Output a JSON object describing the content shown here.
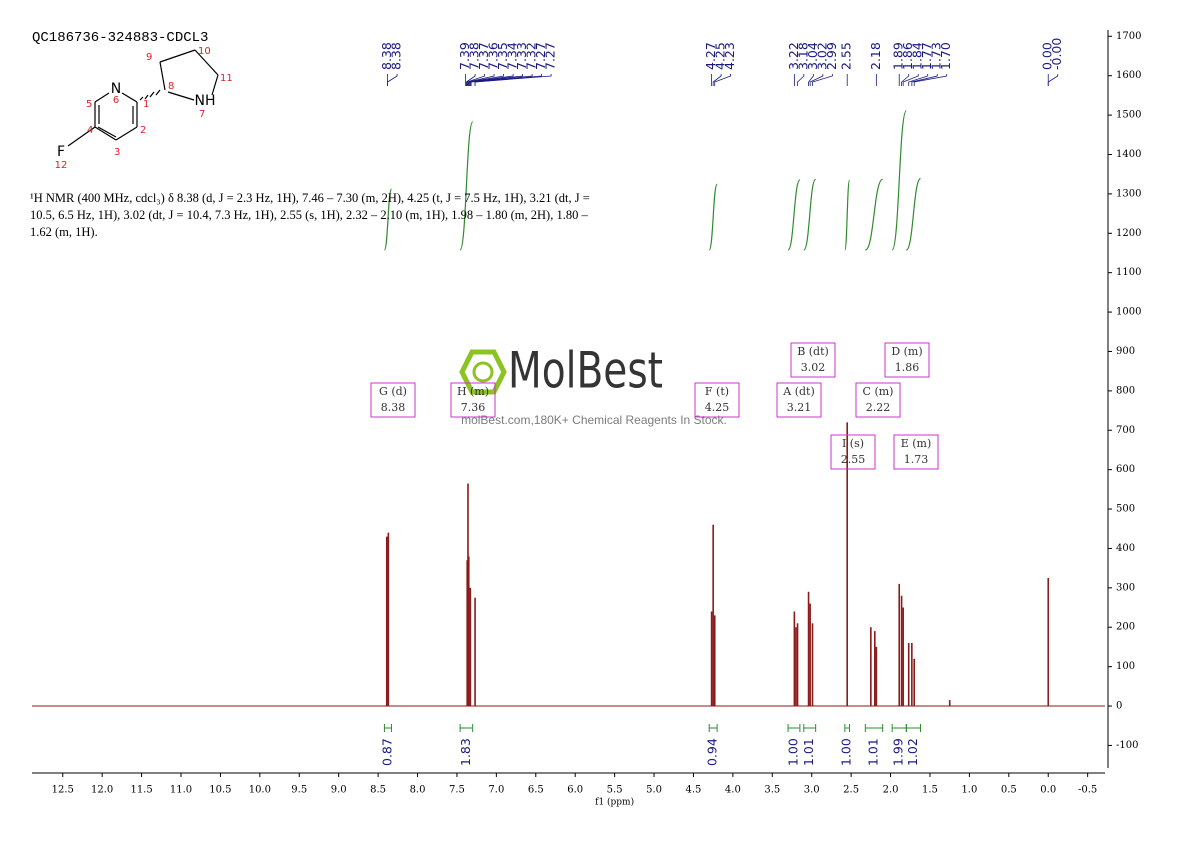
{
  "chart_data": {
    "type": "nmr",
    "title": "QC186736-324883-CDCL3",
    "description": "¹H NMR (400 MHz, cdcl₃) δ 8.38 (d, J = 2.3 Hz, 1H), 7.46 – 7.30 (m, 2H), 4.25 (t, J = 7.5 Hz, 1H), 3.21 (dt, J = 10.5, 6.5 Hz, 1H), 3.02 (dt, J = 10.4, 7.3 Hz, 1H), 2.55 (s, 1H), 2.32 – 2.10 (m, 1H), 1.98 – 1.80 (m, 2H), 1.80 – 1.62 (m, 1H).",
    "structure_labels": [
      "N",
      "6",
      "1",
      "5",
      "4",
      "2",
      "3",
      "F",
      "12",
      "8",
      "9",
      "10",
      "11",
      "NH",
      "7"
    ],
    "watermark": "MolBest",
    "watermark_caption": "molBest.com,180K+ Chemical Reagents In Stock.",
    "x_label": "f1 (ppm)",
    "color": "#8b1a1a",
    "x": [
      8.39,
      8.37,
      7.37,
      7.36,
      7.35,
      7.33,
      7.27,
      4.27,
      4.25,
      4.23,
      3.22,
      3.2,
      3.18,
      3.04,
      3.02,
      2.99,
      2.55,
      2.25,
      2.2,
      2.18,
      1.89,
      1.86,
      1.84,
      1.77,
      1.73,
      1.7,
      1.25,
      0.0
    ],
    "values": [
      430,
      440,
      370,
      565,
      380,
      300,
      275,
      240,
      460,
      230,
      240,
      200,
      210,
      290,
      260,
      210,
      720,
      200,
      190,
      150,
      310,
      280,
      250,
      160,
      160,
      120,
      15,
      325
    ],
    "peak_labels": [
      "8.38",
      "8.38",
      "7.39",
      "7.38",
      "7.37",
      "7.36",
      "7.35",
      "7.34",
      "7.33",
      "7.32",
      "7.27",
      "7.27",
      "4.27",
      "4.25",
      "4.23",
      "3.22",
      "3.18",
      "3.04",
      "3.02",
      "2.99",
      "2.55",
      "2.18",
      "1.89",
      "1.86",
      "1.84",
      "1.77",
      "1.73",
      "1.70",
      "0.00",
      "-0.00"
    ],
    "integrals": {
      "ranges": [
        [
          8.42,
          8.33
        ],
        [
          7.46,
          7.3
        ],
        [
          4.3,
          4.2
        ],
        [
          3.3,
          3.15
        ],
        [
          3.1,
          2.95
        ],
        [
          2.58,
          2.52
        ],
        [
          2.32,
          2.1
        ],
        [
          1.98,
          1.8
        ],
        [
          1.8,
          1.62
        ]
      ],
      "values": [
        0.87,
        1.83,
        0.94,
        1.0,
        1.01,
        1.0,
        1.01,
        1.99,
        1.02
      ],
      "value_labels": [
        "0.87",
        "1.83",
        "0.94",
        "1.00",
        "1.01",
        "1.00",
        "1.01",
        "1.99",
        "1.02"
      ],
      "color": "#2e8b2e"
    },
    "multiplets": [
      {
        "name": "G (d)",
        "shift": "8.38"
      },
      {
        "name": "H (m)",
        "shift": "7.36"
      },
      {
        "name": "F (t)",
        "shift": "4.25"
      },
      {
        "name": "A (dt)",
        "shift": "3.21"
      },
      {
        "name": "B (dt)",
        "shift": "3.02"
      },
      {
        "name": "D (m)",
        "shift": "1.86"
      },
      {
        "name": "C (m)",
        "shift": "2.22"
      },
      {
        "name": "I (s)",
        "shift": "2.55"
      },
      {
        "name": "E (m)",
        "shift": "1.73"
      }
    ],
    "xlim": [
      12.89,
      -0.72
    ],
    "xticks": [
      12.5,
      {
        "value": 12.0,
        "label": "12.0"
      },
      11.5,
      {
        "value": 11.0,
        "label": "11.0"
      },
      10.5,
      {
        "value": 10.0,
        "label": "10.0"
      },
      9.5,
      {
        "value": 9.0,
        "label": "9.0"
      },
      8.5,
      {
        "value": 8.0,
        "label": "8.0"
      },
      7.5,
      {
        "value": 7.0,
        "label": "7.0"
      },
      6.5,
      {
        "value": 6.0,
        "label": "6.0"
      },
      5.5,
      {
        "value": 5.0,
        "label": "5.0"
      },
      4.5,
      {
        "value": 4.0,
        "label": "4.0"
      },
      3.5,
      {
        "value": 3.0,
        "label": "3.0"
      },
      2.5,
      {
        "value": 2.0,
        "label": "2.0"
      },
      1.5,
      {
        "value": 1.0,
        "label": "1.0"
      },
      0.5,
      {
        "value": 0.0,
        "label": "0.0"
      },
      -0.5
    ],
    "ylim": [
      -170,
      1716
    ],
    "yticks": [
      -100,
      0,
      100,
      200,
      300,
      400,
      500,
      600,
      700,
      800,
      900,
      1000,
      1100,
      1200,
      1300,
      1400,
      1500,
      1600,
      1700
    ]
  }
}
